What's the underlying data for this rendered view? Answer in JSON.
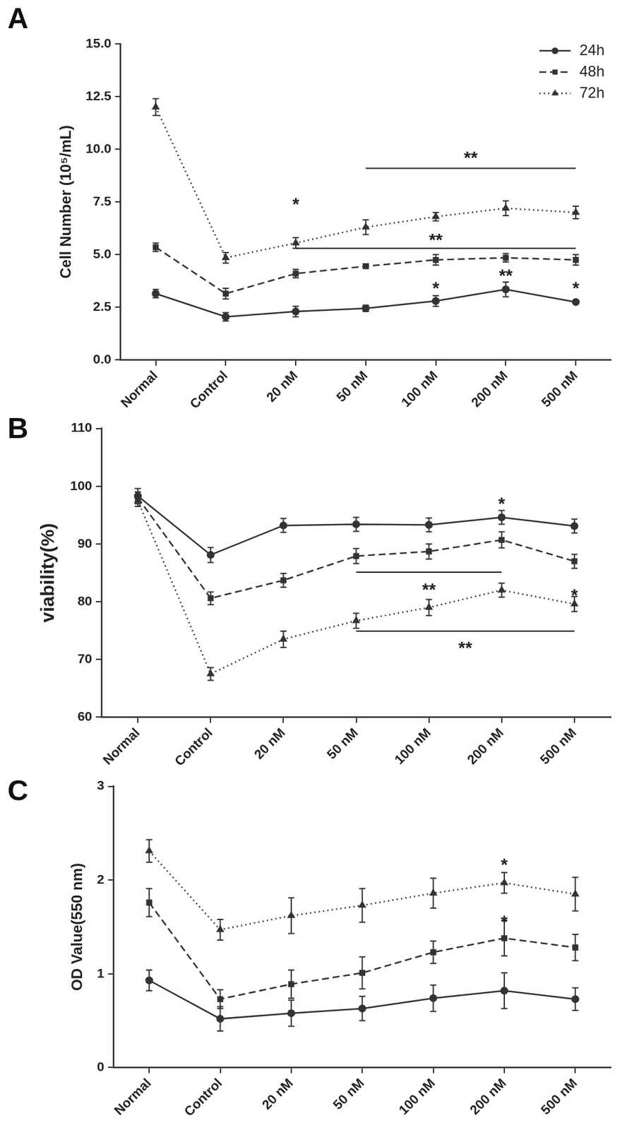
{
  "chart_data": [
    {
      "type": "line",
      "title": "A",
      "y_label": "Cell Number (10⁵/mL)",
      "categories": [
        "Normal",
        "Control",
        "20 nM",
        "50 nM",
        "100 nM",
        "200 nM",
        "500 nM"
      ],
      "ylim": [
        0,
        15
      ],
      "yticks": [
        {
          "value": 0,
          "label": "0.0"
        },
        2.5,
        {
          "value": 5,
          "label": "5.0"
        },
        7.5,
        {
          "value": 10,
          "label": "10.0"
        },
        12.5,
        {
          "value": 15,
          "label": "15.0"
        }
      ],
      "grid": false,
      "legend": "upper right",
      "series": [
        {
          "name": "24h",
          "color": "#333333",
          "marker": "circle",
          "line_style": "solid",
          "values": [
            3.15,
            2.05,
            2.3,
            2.45,
            2.8,
            3.35,
            2.75
          ],
          "errors": [
            0.2,
            0.2,
            0.25,
            0.15,
            0.25,
            0.35,
            0.05
          ]
        },
        {
          "name": "48h",
          "color": "#333333",
          "marker": "square",
          "line_style": "dashed",
          "values": [
            5.35,
            3.15,
            4.1,
            4.45,
            4.75,
            4.85,
            4.75
          ],
          "errors": [
            0.2,
            0.25,
            0.2,
            0.1,
            0.25,
            0.2,
            0.25
          ]
        },
        {
          "name": "72h",
          "color": "#333333",
          "marker": "triangle",
          "line_style": "dotted",
          "values": [
            12.0,
            4.85,
            5.55,
            6.3,
            6.8,
            7.2,
            7.0
          ],
          "errors": [
            0.4,
            0.25,
            0.25,
            0.35,
            0.2,
            0.35,
            0.3
          ]
        }
      ],
      "annotations": [
        {
          "text": "**",
          "from": "50 nM",
          "to": "500 nM",
          "y": 9.1,
          "label_y": 9.8
        },
        {
          "text": "*",
          "at": "20 nM",
          "y": 7.6
        },
        {
          "text": "**",
          "from": "20 nM",
          "to": "500 nM",
          "y": 5.3,
          "label_y": 5.9
        },
        {
          "text": "*",
          "at": "100 nM",
          "y": 3.6
        },
        {
          "text": "**",
          "at": "200 nM",
          "y": 4.2
        },
        {
          "text": "*",
          "at": "500 nM",
          "y": 3.6
        }
      ]
    },
    {
      "type": "line",
      "title": "B",
      "y_label": "viability(%)",
      "categories": [
        "Normal",
        "Control",
        "20 nM",
        "50 nM",
        "100 nM",
        "200 nM",
        "500 nM"
      ],
      "ylim": [
        60,
        110
      ],
      "yticks": [
        60,
        70,
        80,
        90,
        100,
        110
      ],
      "grid": false,
      "series": [
        {
          "name": "24h",
          "color": "#333333",
          "marker": "circle",
          "line_style": "solid",
          "values": [
            98.3,
            88.1,
            93.2,
            93.4,
            93.3,
            94.6,
            93.1
          ],
          "errors": [
            1.3,
            1.3,
            1.2,
            1.2,
            1.2,
            1.2,
            1.2
          ]
        },
        {
          "name": "48h",
          "color": "#333333",
          "marker": "square",
          "line_style": "dashed",
          "values": [
            98.0,
            80.6,
            83.7,
            87.9,
            88.7,
            90.7,
            87.0
          ],
          "errors": [
            1.0,
            1.1,
            1.2,
            1.3,
            1.3,
            1.4,
            1.2
          ]
        },
        {
          "name": "72h",
          "color": "#333333",
          "marker": "triangle",
          "line_style": "dotted",
          "values": [
            97.5,
            67.5,
            73.5,
            76.7,
            79.0,
            82.0,
            79.6
          ],
          "errors": [
            1.0,
            1.1,
            1.4,
            1.3,
            1.4,
            1.2,
            1.3
          ]
        }
      ],
      "annotations": [
        {
          "text": "*",
          "at": "200 nM",
          "y": 97.7
        },
        {
          "text": "*",
          "at": "500 nM",
          "y": 81.8
        },
        {
          "text": "**",
          "from": "50 nM",
          "to": "200 nM",
          "y": 85.1,
          "label_y": 82.8
        },
        {
          "text": "**",
          "from": "50 nM",
          "to": "500 nM",
          "y": 74.9,
          "label_y": 72.7
        }
      ]
    },
    {
      "type": "line",
      "title": "C",
      "y_label": "OD Value(550 nm)",
      "categories": [
        "Normal",
        "Control",
        "20 nM",
        "50 nM",
        "100 nM",
        "200 nM",
        "500 nM"
      ],
      "ylim": [
        0,
        3
      ],
      "yticks": [
        0,
        1,
        2,
        3
      ],
      "grid": false,
      "series": [
        {
          "name": "24h",
          "color": "#333333",
          "marker": "circle",
          "line_style": "solid",
          "values": [
            0.93,
            0.52,
            0.58,
            0.63,
            0.74,
            0.82,
            0.73
          ],
          "errors": [
            0.11,
            0.13,
            0.14,
            0.13,
            0.14,
            0.19,
            0.12
          ]
        },
        {
          "name": "48h",
          "color": "#333333",
          "marker": "square",
          "line_style": "dashed",
          "values": [
            1.76,
            0.73,
            0.89,
            1.01,
            1.23,
            1.38,
            1.28
          ],
          "errors": [
            0.15,
            0.1,
            0.15,
            0.17,
            0.12,
            0.19,
            0.14
          ]
        },
        {
          "name": "72h",
          "color": "#333333",
          "marker": "triangle",
          "line_style": "dotted",
          "values": [
            2.31,
            1.47,
            1.62,
            1.73,
            1.86,
            1.97,
            1.85
          ],
          "errors": [
            0.12,
            0.11,
            0.19,
            0.18,
            0.16,
            0.11,
            0.18
          ]
        }
      ],
      "annotations": [
        {
          "text": "*",
          "at": "200 nM",
          "y": 2.21
        },
        {
          "text": "*",
          "at": "200 nM",
          "y": 1.6
        }
      ]
    }
  ]
}
